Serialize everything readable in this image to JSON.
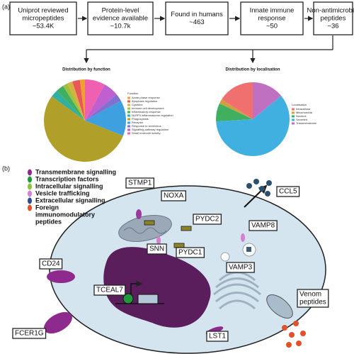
{
  "panel_a": {
    "label": "(a)",
    "steps": [
      {
        "lines": [
          "Uniprot reviewed",
          "micropeptides"
        ],
        "count": "~53.4K"
      },
      {
        "lines": [
          "Protein-level",
          "evidence available"
        ],
        "count": "~10.7k"
      },
      {
        "lines": [
          "Found in humans"
        ],
        "count": "~463"
      },
      {
        "lines": [
          "Innate immune",
          "response"
        ],
        "count": "~50"
      },
      {
        "lines": [
          "Non-antimicrobial",
          "peptides"
        ],
        "count": "~36"
      }
    ],
    "charts": [
      {
        "type": "pie",
        "title": "Distribution by function",
        "legend_title": "Function",
        "categories": [
          "Acute phase response",
          "Apoptosis regulation",
          "Cytokine",
          "Immune cell development",
          "Inflammatory response",
          "NLRP3 inflammasome regulation",
          "Phagocytosis",
          "Receptor",
          "Response to toxin/virus",
          "Signalling pathway regulation",
          "Small molecule activity"
        ],
        "values": [
          2,
          3,
          2,
          2,
          3,
          3,
          54,
          14,
          3,
          6,
          8
        ],
        "colors": [
          "#f0a030",
          "#e8585a",
          "#d8b040",
          "#a0c040",
          "#40b060",
          "#30b0a0",
          "#b0a02a",
          "#3fa0e0",
          "#8070d0",
          "#c060d0",
          "#f060b0"
        ]
      },
      {
        "type": "pie",
        "title": "Distribution by localisation",
        "legend_title": "Localisation",
        "categories": [
          "Intracellular",
          "Mitochondria",
          "Nucleus",
          "Secreted",
          "Transmembrane"
        ],
        "values": [
          16,
          2,
          8,
          60,
          14
        ],
        "colors": [
          "#f07070",
          "#d0a040",
          "#40b060",
          "#40b0e0",
          "#c070c0"
        ]
      }
    ]
  },
  "panel_b": {
    "label": "(b)",
    "legend": [
      {
        "lines": [
          "Transmembrane signalling"
        ],
        "color": "#8e2a8e"
      },
      {
        "lines": [
          "Transcription factors"
        ],
        "color": "#1f9a3a"
      },
      {
        "lines": [
          "Intracellular signalling"
        ],
        "color": "#8cc43c"
      },
      {
        "lines": [
          "Vesicle trafficking"
        ],
        "color": "#d77fd0"
      },
      {
        "lines": [
          "Extracellular signalling"
        ],
        "color": "#2d4a9a"
      },
      {
        "lines": [
          "Foreign",
          "immunomodulatory",
          " peptides"
        ],
        "color": "#e0522a"
      }
    ],
    "labels": [
      [
        "STMP1"
      ],
      [
        "NOXA"
      ],
      [
        "PYDC2"
      ],
      [
        "SNN"
      ],
      [
        "PYDC1"
      ],
      [
        "VAMP8"
      ],
      [
        "VAMP3"
      ],
      [
        "CD24"
      ],
      [
        "TCEAL7"
      ],
      [
        "FCER1G"
      ],
      [
        "LST1"
      ],
      [
        "CCL5"
      ],
      [
        "Venom",
        "peptides"
      ]
    ]
  }
}
